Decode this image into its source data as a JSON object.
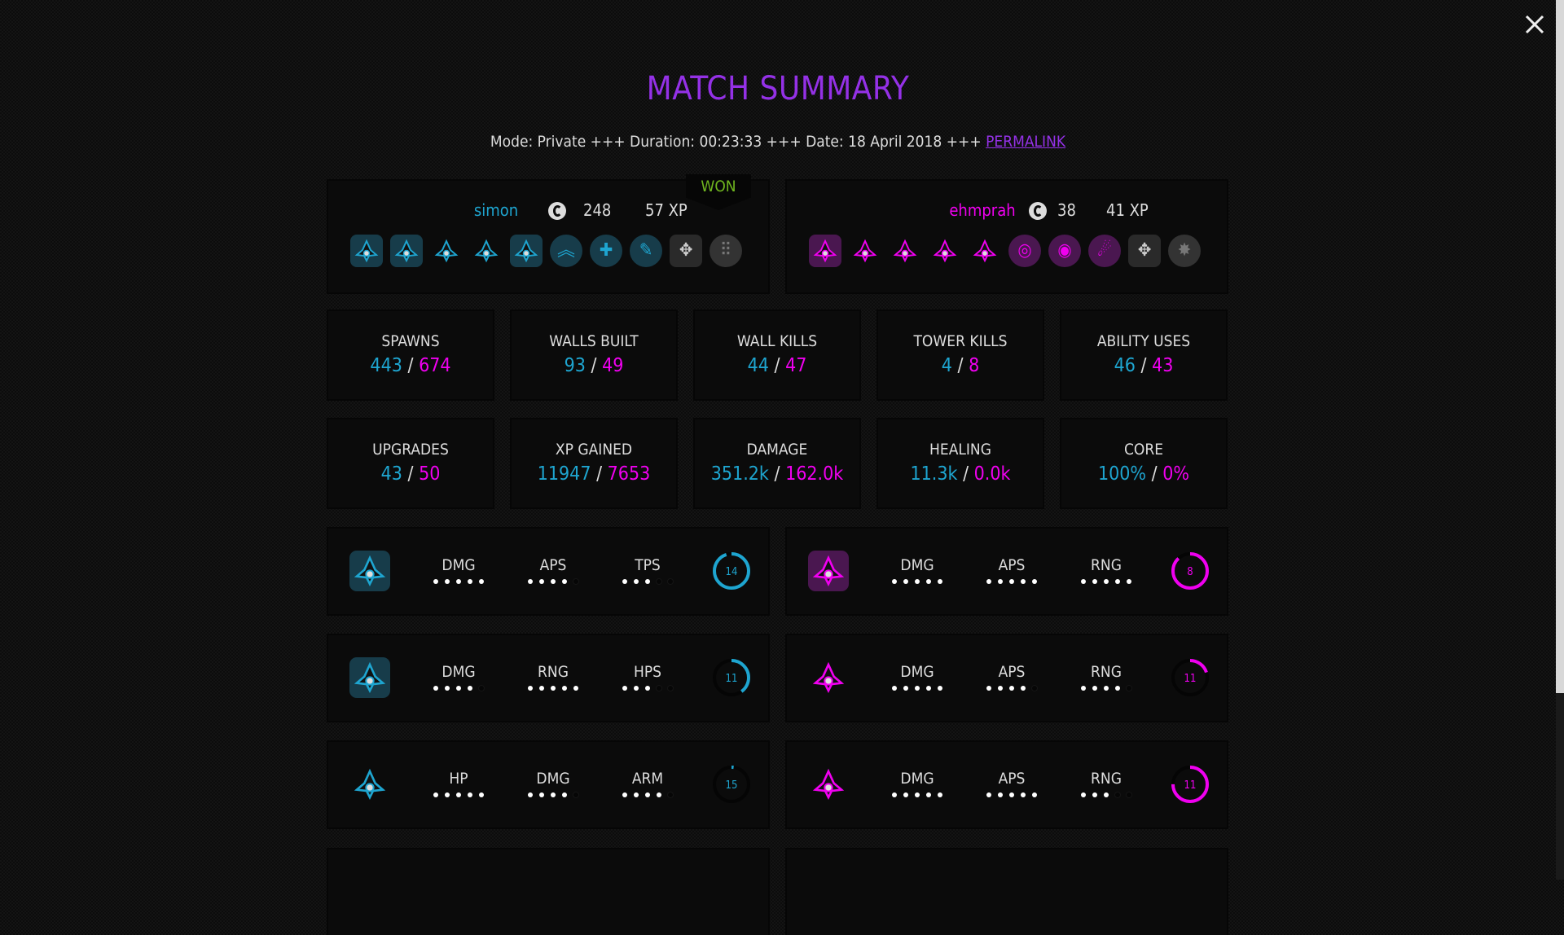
{
  "header": {
    "title": "MATCH SUMMARY",
    "info": "Mode: Private +++ Duration: 00:23:33 +++ Date: 18 April 2018 +++ ",
    "permalink": "PERMALINK",
    "close_icon": "close-x-icon"
  },
  "colors": {
    "player1": "#1ea5d0",
    "player2": "#f000f0",
    "title": "#9431e6",
    "won": "#6fb51f"
  },
  "players": [
    {
      "name": "simon",
      "currency": "248",
      "xp": "57 XP",
      "result": "WON",
      "icons": [
        {
          "name": "scout-ship-icon",
          "shape": "framed"
        },
        {
          "name": "reactor-icon",
          "shape": "framed"
        },
        {
          "name": "drone-icon",
          "shape": "plain"
        },
        {
          "name": "fighter-icon",
          "shape": "plain"
        },
        {
          "name": "core-ring-icon",
          "shape": "framed"
        },
        {
          "name": "double-chevron-up-icon",
          "shape": "round",
          "glyph": "︽"
        },
        {
          "name": "plus-icon",
          "shape": "round",
          "glyph": "✚"
        },
        {
          "name": "syringe-icon",
          "shape": "round",
          "glyph": "✎"
        },
        {
          "name": "compass-star-icon",
          "shape": "framed-gray",
          "glyph": "✥"
        },
        {
          "name": "dot-grid-icon",
          "shape": "round-gray",
          "glyph": "⠿"
        }
      ]
    },
    {
      "name": "ehmprah",
      "currency": "38",
      "xp": "41 XP",
      "result": "",
      "icons": [
        {
          "name": "spike-ship-icon",
          "shape": "framed"
        },
        {
          "name": "pillar-unit-icon",
          "shape": "plain"
        },
        {
          "name": "pod-icon",
          "shape": "plain"
        },
        {
          "name": "saw-ring-icon",
          "shape": "plain"
        },
        {
          "name": "twin-pod-icon",
          "shape": "plain"
        },
        {
          "name": "target-icon",
          "shape": "round",
          "glyph": "◎"
        },
        {
          "name": "eye-icon",
          "shape": "round",
          "glyph": "◉"
        },
        {
          "name": "comet-icon",
          "shape": "round",
          "glyph": "☄"
        },
        {
          "name": "compass-star-icon",
          "shape": "framed-gray",
          "glyph": "✥"
        },
        {
          "name": "burst-icon",
          "shape": "round-gray",
          "glyph": "✸"
        }
      ]
    }
  ],
  "stats": [
    {
      "label": "SPAWNS",
      "p1": "443",
      "p2": "674"
    },
    {
      "label": "WALLS BUILT",
      "p1": "93",
      "p2": "49"
    },
    {
      "label": "WALL KILLS",
      "p1": "44",
      "p2": "47"
    },
    {
      "label": "TOWER KILLS",
      "p1": "4",
      "p2": "8"
    },
    {
      "label": "ABILITY USES",
      "p1": "46",
      "p2": "43"
    },
    {
      "label": "UPGRADES",
      "p1": "43",
      "p2": "50"
    },
    {
      "label": "XP GAINED",
      "p1": "11947",
      "p2": "7653"
    },
    {
      "label": "DAMAGE",
      "p1": "351.2k",
      "p2": "162.0k"
    },
    {
      "label": "HEALING",
      "p1": "11.3k",
      "p2": "0.0k"
    },
    {
      "label": "CORE",
      "p1": "100%",
      "p2": "0%"
    }
  ],
  "separator": "/",
  "units": {
    "p1": [
      {
        "icon": "scout-ship-icon",
        "framed": true,
        "stats": [
          {
            "label": "DMG",
            "level": 5
          },
          {
            "label": "APS",
            "level": 4
          },
          {
            "label": "TPS",
            "level": 3
          }
        ],
        "ring": {
          "value": "14",
          "fill": 0.95
        }
      },
      {
        "icon": "reactor-icon",
        "framed": true,
        "stats": [
          {
            "label": "DMG",
            "level": 4
          },
          {
            "label": "RNG",
            "level": 5
          },
          {
            "label": "HPS",
            "level": 3
          }
        ],
        "ring": {
          "value": "11",
          "fill": 0.4
        }
      },
      {
        "icon": "drone-icon",
        "framed": false,
        "stats": [
          {
            "label": "HP",
            "level": 5
          },
          {
            "label": "DMG",
            "level": 4
          },
          {
            "label": "ARM",
            "level": 4
          }
        ],
        "ring": {
          "value": "15",
          "fill": 0.02
        }
      }
    ],
    "p2": [
      {
        "icon": "spike-ship-icon",
        "framed": true,
        "stats": [
          {
            "label": "DMG",
            "level": 5
          },
          {
            "label": "APS",
            "level": 5
          },
          {
            "label": "RNG",
            "level": 5
          }
        ],
        "ring": {
          "value": "8",
          "fill": 0.88
        }
      },
      {
        "icon": "pillar-unit-icon",
        "framed": false,
        "stats": [
          {
            "label": "DMG",
            "level": 5
          },
          {
            "label": "APS",
            "level": 4
          },
          {
            "label": "RNG",
            "level": 4
          }
        ],
        "ring": {
          "value": "11",
          "fill": 0.2
        }
      },
      {
        "icon": "pod-icon",
        "framed": false,
        "stats": [
          {
            "label": "DMG",
            "level": 5
          },
          {
            "label": "APS",
            "level": 5
          },
          {
            "label": "RNG",
            "level": 3
          }
        ],
        "ring": {
          "value": "11",
          "fill": 0.75
        }
      }
    ]
  }
}
